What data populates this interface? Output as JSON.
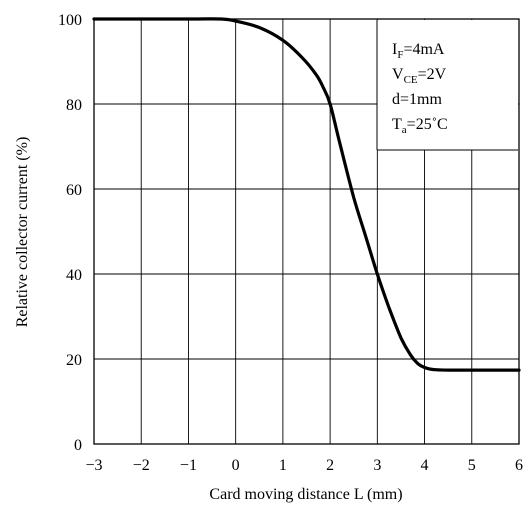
{
  "chart_data": {
    "type": "line",
    "title": "",
    "xlabel": "Card moving distance L (mm)",
    "ylabel": "Relative collector current (%)",
    "xlim": [
      -3,
      6
    ],
    "ylim": [
      0,
      100
    ],
    "x_ticks": [
      "−3",
      "−2",
      "−1",
      "0",
      "1",
      "2",
      "3",
      "4",
      "5",
      "6"
    ],
    "y_ticks": [
      "0",
      "20",
      "40",
      "60",
      "80",
      "100"
    ],
    "grid": true,
    "conditions": [
      {
        "main": "I",
        "sub": "F",
        "rest": "=4mA"
      },
      {
        "main": "V",
        "sub": "CE",
        "rest": "=2V"
      },
      {
        "main": "d=1mm",
        "sub": "",
        "rest": ""
      },
      {
        "main": "T",
        "sub": "a",
        "rest": "=25˚C"
      }
    ],
    "series": [
      {
        "x": [
          -3,
          -1,
          -0.3,
          0,
          0.5,
          1,
          1.4,
          1.7,
          1.85,
          2,
          2.2,
          2.5,
          2.75,
          3,
          3.25,
          3.5,
          3.7,
          3.85,
          4,
          4.2,
          4.5,
          5,
          6
        ],
        "y": [
          100,
          100,
          100,
          99.5,
          98,
          95,
          91,
          87,
          84,
          80,
          71,
          58,
          49,
          40,
          32,
          25,
          21,
          19,
          18,
          17.5,
          17.4,
          17.4,
          17.4
        ]
      }
    ]
  }
}
